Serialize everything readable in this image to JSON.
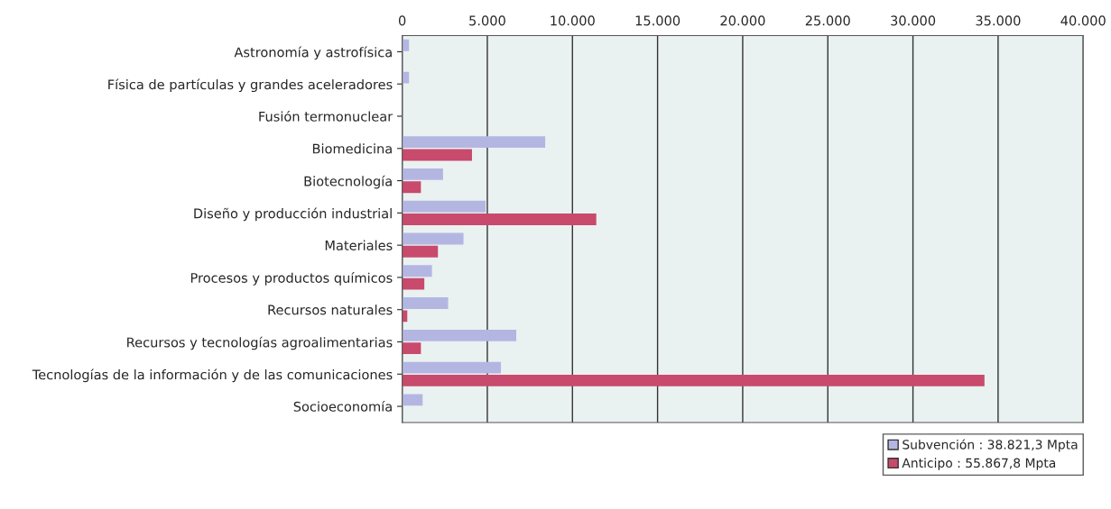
{
  "chart_data": {
    "type": "bar",
    "orientation": "horizontal",
    "categories": [
      "Astronomía y astrofísica",
      "Física de partículas y grandes aceleradores",
      "Fusión termonuclear",
      "Biomedicina",
      "Biotecnología",
      "Diseño y producción industrial",
      "Materiales",
      "Procesos y productos químicos",
      "Recursos naturales",
      "Recursos y tecnologías agroalimentarias",
      "Tecnologías de la información y de las comunicaciones",
      "Socioeconomía"
    ],
    "series": [
      {
        "name": "Subvención : 38.821,3 Mpta",
        "color": "#b4b6e2",
        "values": [
          400,
          400,
          null,
          8400,
          2400,
          4900,
          3600,
          1750,
          2700,
          6700,
          5800,
          1200
        ]
      },
      {
        "name": "Anticipo : 55.867,8 Mpta",
        "color": "#c84a6c",
        "values": [
          null,
          null,
          null,
          4100,
          1100,
          11400,
          2100,
          1300,
          300,
          1100,
          34200,
          null
        ]
      }
    ],
    "xlim": [
      0,
      40000
    ],
    "xticks": [
      0,
      {
        "value": 5000,
        "label": "5.000"
      },
      {
        "value": 10000,
        "label": "10.000"
      },
      {
        "value": 15000,
        "label": "15.000"
      },
      {
        "value": 20000,
        "label": "20.000"
      },
      {
        "value": 25000,
        "label": "25.000"
      },
      {
        "value": 30000,
        "label": "30.000"
      },
      {
        "value": 35000,
        "label": "35.000"
      },
      {
        "value": 40000,
        "label": "40.000"
      }
    ],
    "grid": "x",
    "legend": "bottom right"
  }
}
